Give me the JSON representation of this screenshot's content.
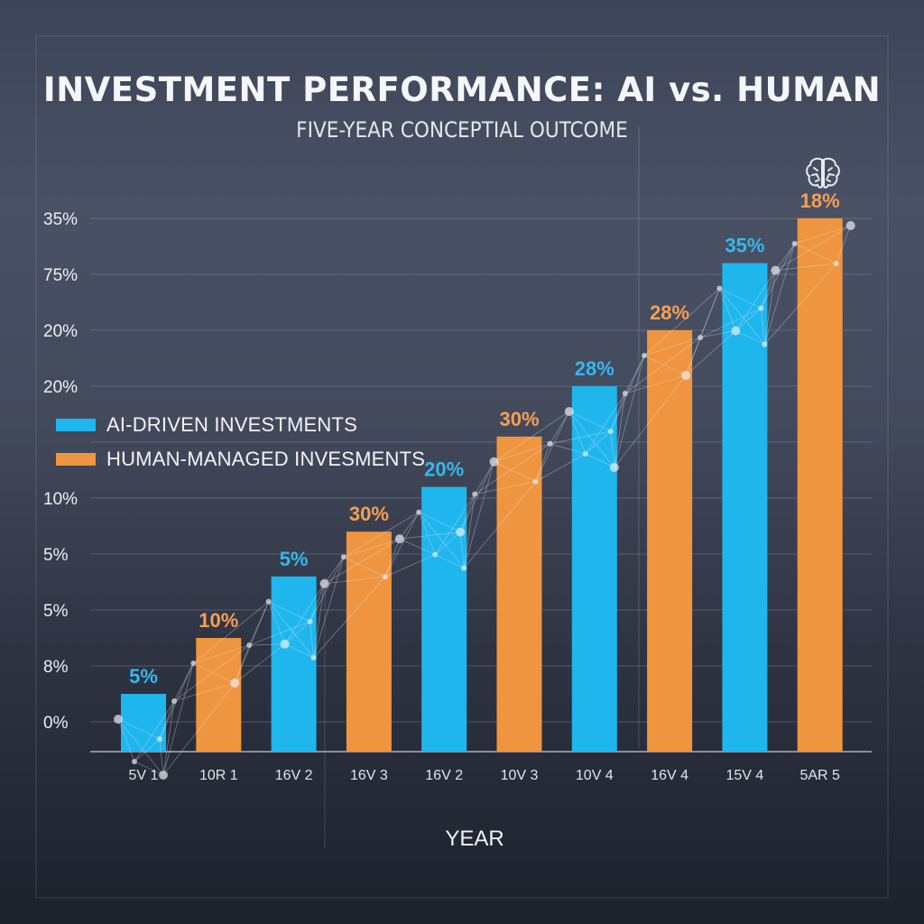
{
  "colors": {
    "ai": "#1fb6ee",
    "human": "#f0953f",
    "ai_label": "#35b8ee",
    "human_label": "#f5a052",
    "grid": "#9aa3b4",
    "text": "#f1f3f7"
  },
  "icons": [
    "brain-icon"
  ],
  "chart_data": {
    "type": "bar",
    "title": "INVESTMENT PERFORMANCE: AI vs. HUMAN",
    "subtitle": "FIVE-YEAR CONCEPTIAL OUTCOME",
    "xlabel": "YEAR",
    "ylabel": "",
    "ylim": [
      0,
      9
    ],
    "grid": true,
    "legend_position": "left",
    "y_tick_labels": [
      "0%",
      "8%",
      "5%",
      "5%",
      "10%",
      "",
      "20%",
      "20%",
      "75%",
      "35%"
    ],
    "categories": [
      "5V 1",
      "10R 1",
      "16V 2",
      "16V 3",
      "16V 2",
      "10V 3",
      "10V 4",
      "16V 4",
      "15V 4",
      "5AR 5"
    ],
    "series": [
      {
        "name": "AI-DRIVEN INVESTMENTS",
        "key": "ai"
      },
      {
        "name": "HUMAN-MANAGED INVESMENTS",
        "key": "human"
      }
    ],
    "bars": [
      {
        "series": "ai",
        "value": 0.5,
        "label": "5%"
      },
      {
        "series": "human",
        "value": 1.5,
        "label": "10%"
      },
      {
        "series": "ai",
        "value": 2.6,
        "label": "5%"
      },
      {
        "series": "human",
        "value": 3.4,
        "label": "30%"
      },
      {
        "series": "ai",
        "value": 4.2,
        "label": "20%"
      },
      {
        "series": "human",
        "value": 5.1,
        "label": "30%"
      },
      {
        "series": "ai",
        "value": 6.0,
        "label": "28%"
      },
      {
        "series": "human",
        "value": 7.0,
        "label": "28%"
      },
      {
        "series": "ai",
        "value": 8.2,
        "label": "35%"
      },
      {
        "series": "human",
        "value": 9.0,
        "label": "18%"
      }
    ]
  }
}
